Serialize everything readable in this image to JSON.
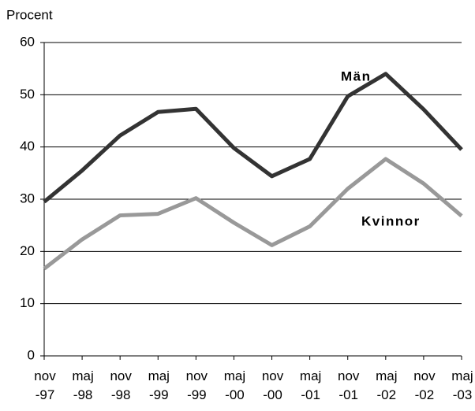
{
  "chart_data": {
    "type": "line",
    "y_label": "Procent",
    "categories": [
      "nov\n-97",
      "maj\n-98",
      "nov\n-98",
      "maj\n-99",
      "nov\n-99",
      "maj\n-00",
      "nov\n-00",
      "maj\n-01",
      "nov\n-01",
      "maj\n-02",
      "nov\n-02",
      "maj\n-03"
    ],
    "series": [
      {
        "name": "Män",
        "color": "#333333",
        "values": [
          29.5,
          35.5,
          42.2,
          46.7,
          47.3,
          39.8,
          34.4,
          37.7,
          49.7,
          54.0,
          47.2,
          39.5
        ]
      },
      {
        "name": "Kvinnor",
        "color": "#999999",
        "values": [
          16.7,
          22.3,
          26.9,
          27.2,
          30.2,
          25.5,
          21.2,
          24.8,
          32.0,
          37.7,
          33.0,
          26.8
        ]
      }
    ],
    "ylim": [
      0,
      60
    ],
    "yticks": [
      0,
      10,
      20,
      30,
      40,
      50,
      60
    ],
    "grid": true
  }
}
